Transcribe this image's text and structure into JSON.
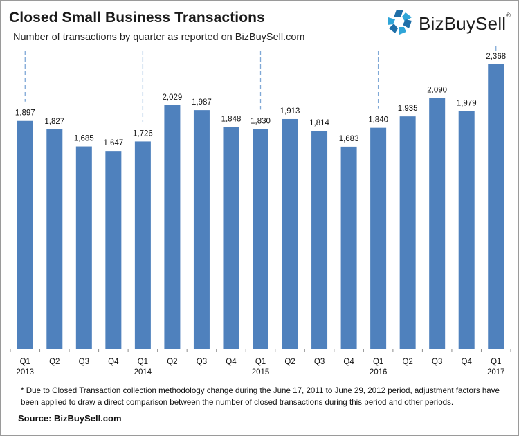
{
  "header": {
    "title": "Closed Small Business Transactions",
    "subtitle": "Number of transactions by quarter as reported on BizBuySell.com"
  },
  "logo": {
    "brand": "BizBuySell",
    "mark": "®",
    "colors": {
      "mark_dark": "#1f6fa8",
      "mark_light": "#2fa5d8"
    }
  },
  "chart_data": {
    "type": "bar",
    "bar_color": "#4f81bd",
    "categories": [
      [
        "Q1",
        "2013"
      ],
      [
        "Q2",
        ""
      ],
      [
        "Q3",
        ""
      ],
      [
        "Q4",
        ""
      ],
      [
        "Q1",
        "2014"
      ],
      [
        "Q2",
        ""
      ],
      [
        "Q3",
        ""
      ],
      [
        "Q4",
        ""
      ],
      [
        "Q1",
        "2015"
      ],
      [
        "Q2",
        ""
      ],
      [
        "Q3",
        ""
      ],
      [
        "Q4",
        ""
      ],
      [
        "Q1",
        "2016"
      ],
      [
        "Q2",
        ""
      ],
      [
        "Q3",
        ""
      ],
      [
        "Q4",
        ""
      ],
      [
        "Q1",
        "2017"
      ]
    ],
    "values": [
      1897,
      1827,
      1685,
      1647,
      1726,
      2029,
      1987,
      1848,
      1830,
      1913,
      1814,
      1683,
      1840,
      1935,
      2090,
      1979,
      2368
    ],
    "value_labels": [
      "1,897",
      "1,827",
      "1,685",
      "1,647",
      "1,726",
      "2,029",
      "1,987",
      "1,848",
      "1,830",
      "1,913",
      "1,814",
      "1,683",
      "1,840",
      "1,935",
      "2,090",
      "1,979",
      "2,368"
    ],
    "year_dividers_before": [
      "Q1 2013",
      "Q1 2014",
      "Q1 2015",
      "Q1 2016"
    ],
    "ylim": [
      0,
      2500
    ],
    "grid": false,
    "legend": "none"
  },
  "footer": {
    "footnote": "* Due to Closed Transaction collection methodology change during the June 17, 2011 to June 29, 2012 period, adjustment factors have been applied to draw a direct comparison between the number of closed transactions during this period and other periods.",
    "source": "Source: BizBuySell.com"
  }
}
